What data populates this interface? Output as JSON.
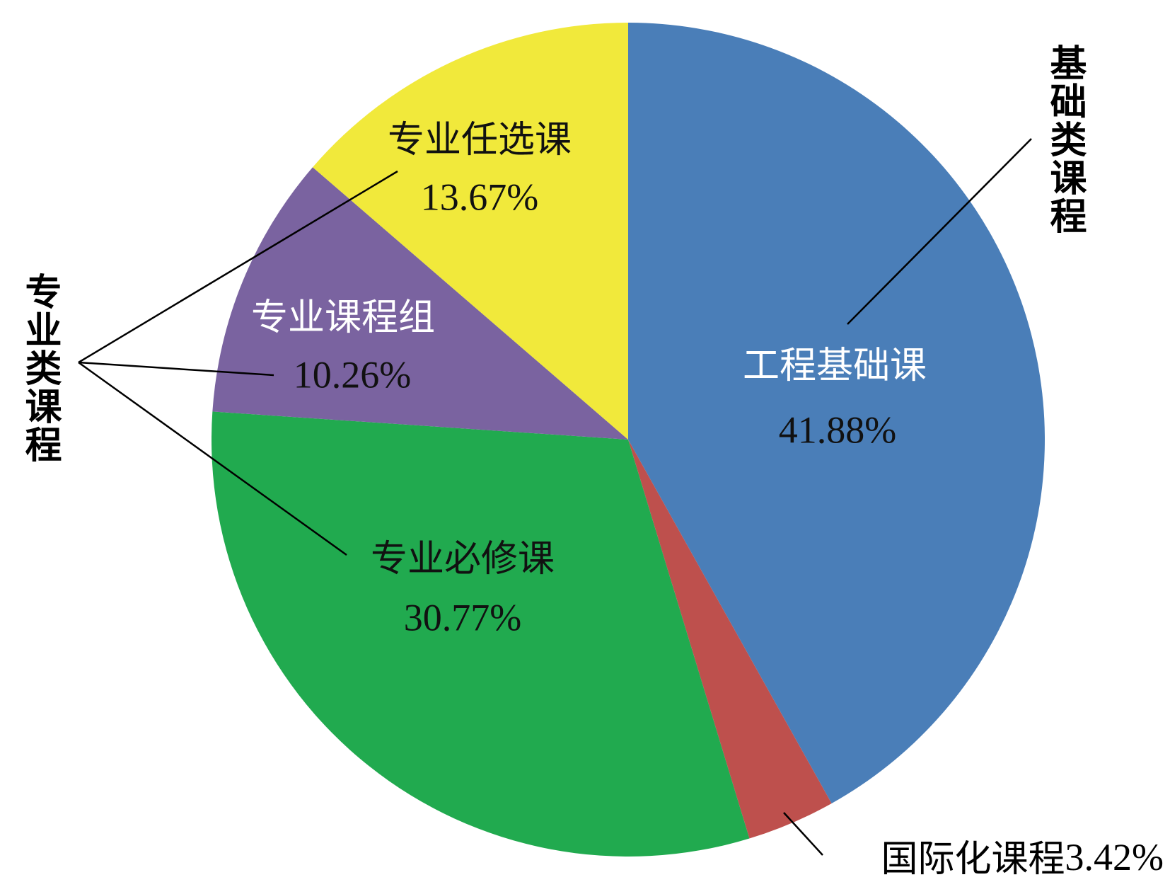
{
  "chart_data": {
    "type": "pie",
    "categories": [
      "工程基础课",
      "国际化课程",
      "专业必修课",
      "专业课程组",
      "专业任选课"
    ],
    "values": [
      41.88,
      3.42,
      30.77,
      10.26,
      13.67
    ],
    "value_labels": [
      "41.88%",
      "3.42%",
      "30.77%",
      "10.26%",
      "13.67%"
    ],
    "colors": [
      "#4a7eb8",
      "#be504d",
      "#21aa4f",
      "#7a63a0",
      "#f1e93b"
    ],
    "annotations": [
      "基础类课程",
      "专业类课程"
    ]
  }
}
